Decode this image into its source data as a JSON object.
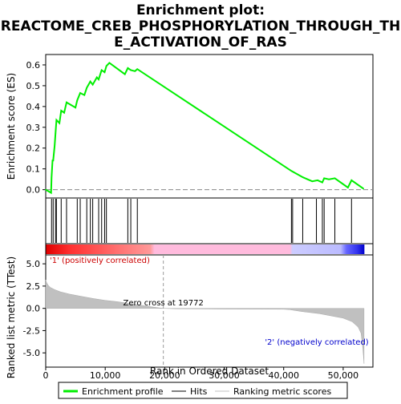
{
  "chart_data": {
    "type": "line",
    "title": "Enrichment plot:\nREACTOME_CREB_PHOSPHORYLATION_THROUGH_TH\nE_ACTIVATION_OF_RAS",
    "panels": {
      "es": {
        "ylabel": "Enrichment score (ES)",
        "ylim": [
          -0.04,
          0.65
        ],
        "yticks": [
          0.0,
          0.1,
          0.2,
          0.3,
          0.4,
          0.5,
          0.6
        ],
        "ytick_labels": [
          "0.0",
          "0.1",
          "0.2",
          "0.3",
          "0.4",
          "0.5",
          "0.6"
        ],
        "series": [
          {
            "name": "Enrichment profile",
            "color": "#00ee00",
            "x": [
              0,
              900,
              980,
              1150,
              1250,
              1500,
              1650,
              1800,
              2300,
              2600,
              3100,
              3500,
              5000,
              5300,
              5800,
              6500,
              6900,
              7500,
              7900,
              8600,
              8900,
              9400,
              9900,
              10200,
              10700,
              13300,
              13800,
              14300,
              15000,
              15400,
              41300,
              43200,
              44800,
              45700,
              46500,
              46800,
              47600,
              48600,
              50800,
              51400,
              53400
            ],
            "y": [
              0.0,
              -0.015,
              0.06,
              0.14,
              0.14,
              0.21,
              0.27,
              0.335,
              0.32,
              0.38,
              0.37,
              0.42,
              0.395,
              0.43,
              0.465,
              0.455,
              0.49,
              0.52,
              0.505,
              0.54,
              0.53,
              0.575,
              0.565,
              0.595,
              0.61,
              0.555,
              0.585,
              0.575,
              0.57,
              0.58,
              0.09,
              0.06,
              0.04,
              0.045,
              0.035,
              0.055,
              0.05,
              0.055,
              0.01,
              0.045,
              0.005
            ]
          }
        ]
      },
      "hits": {
        "name": "Hits",
        "color": "#000000",
        "x": [
          980,
          1250,
          1650,
          1800,
          2600,
          3500,
          5300,
          5800,
          6900,
          7500,
          7900,
          8900,
          9400,
          9900,
          10200,
          13800,
          14300,
          15400,
          41300,
          41500,
          43200,
          45500,
          46500,
          46800,
          48600,
          51400
        ]
      },
      "rank_bar": {
        "x_extent": [
          0,
          53500
        ],
        "gradient_stops": [
          {
            "x": 0,
            "color": "#e00000"
          },
          {
            "x": 4000,
            "color": "#ff3030"
          },
          {
            "x": 12000,
            "color": "#ff7070"
          },
          {
            "x": 17500,
            "color": "#ff9999"
          },
          {
            "x": 18200,
            "color": "#ffbbdd"
          },
          {
            "x": 41000,
            "color": "#ffbbdd"
          },
          {
            "x": 41400,
            "color": "#ccccff"
          },
          {
            "x": 49500,
            "color": "#bbbbff"
          },
          {
            "x": 50500,
            "color": "#6666ff"
          },
          {
            "x": 52300,
            "color": "#3333ee"
          },
          {
            "x": 53500,
            "color": "#0000cc"
          }
        ]
      },
      "metric": {
        "name": "Ranking metric scores",
        "color": "#c0c0c0",
        "ylabel": "Ranked list metric (TTest)",
        "ylim": [
          -6.6,
          6.0
        ],
        "yticks": [
          -5.0,
          -2.5,
          0.0,
          2.5,
          5.0
        ],
        "ytick_labels": [
          "-5.0",
          "-2.5",
          "0.0",
          "2.5",
          "5.0"
        ],
        "x": [
          0,
          150,
          400,
          800,
          1500,
          2500,
          4000,
          6000,
          8000,
          10000,
          12000,
          14000,
          16000,
          18000,
          19772,
          22000,
          30000,
          40000,
          41000,
          43000,
          46000,
          48000,
          50000,
          51500,
          52500,
          53000,
          53300,
          53500
        ],
        "y": [
          3.2,
          2.9,
          2.6,
          2.35,
          2.1,
          1.85,
          1.6,
          1.35,
          1.1,
          0.9,
          0.75,
          0.55,
          0.35,
          0.15,
          0.0,
          -0.05,
          -0.08,
          -0.1,
          -0.15,
          -0.35,
          -0.6,
          -0.85,
          -1.1,
          -1.5,
          -2.1,
          -2.8,
          -4.5,
          -6.2
        ]
      }
    },
    "xaxis": {
      "xlabel": "Rank in Ordered Dataset",
      "xlim": [
        0,
        55000
      ],
      "xticks": [
        0,
        10000,
        20000,
        30000,
        40000,
        50000
      ],
      "xtick_labels": [
        "0",
        "10,000",
        "20,000",
        "30,000",
        "40,000",
        "50,000"
      ]
    },
    "annotations": {
      "zero_cross_x": 19772,
      "zero_cross_label": "Zero cross at 19772",
      "positive_label": "'1' (positively correlated)",
      "negative_label": "'2' (negatively correlated)"
    },
    "legend": {
      "placement": "bottom",
      "entries": [
        "Enrichment profile",
        "Hits",
        "Ranking metric scores"
      ]
    }
  }
}
